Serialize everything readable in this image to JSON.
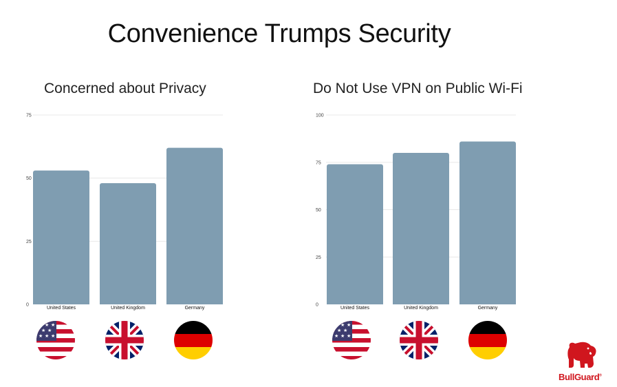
{
  "title": "Convenience Trumps Security",
  "brand": {
    "name": "BullGuard",
    "mark": "®"
  },
  "colors": {
    "bar": "#7f9db1",
    "grid": "#e8e8e8",
    "brand": "#d0161e"
  },
  "chart_data": [
    {
      "type": "bar",
      "title": "Concerned about Privacy",
      "categories": [
        "United States",
        "United Kingdom",
        "Germany"
      ],
      "values": [
        53,
        48,
        62
      ],
      "ylim": [
        0,
        75
      ],
      "yticks": [
        0,
        25,
        50,
        75
      ],
      "grid": true,
      "xlabel": "",
      "ylabel": ""
    },
    {
      "type": "bar",
      "title": "Do Not Use VPN on Public Wi-Fi",
      "categories": [
        "United States",
        "United Kingdom",
        "Germany"
      ],
      "values": [
        74,
        80,
        86
      ],
      "ylim": [
        0,
        100
      ],
      "yticks": [
        0,
        25,
        50,
        75,
        100
      ],
      "grid": true,
      "xlabel": "",
      "ylabel": ""
    }
  ],
  "flags": [
    "us-flag-icon",
    "uk-flag-icon",
    "germany-flag-icon"
  ]
}
